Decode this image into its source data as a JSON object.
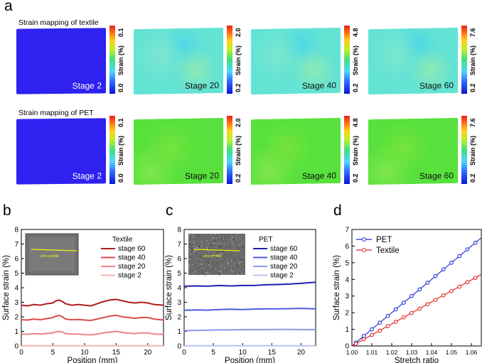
{
  "panel_a": {
    "letter": "a",
    "rows": [
      {
        "title": "Strain mapping of textile",
        "tiles": [
          {
            "stage": "Stage 2",
            "cbar_min": "0.0",
            "cbar_max": "0.1"
          },
          {
            "stage": "Stage 20",
            "cbar_min": "0.2",
            "cbar_max": "2.0"
          },
          {
            "stage": "Stage 40",
            "cbar_min": "0.2",
            "cbar_max": "4.8"
          },
          {
            "stage": "Stage 60",
            "cbar_min": "0.2",
            "cbar_max": "7.6"
          }
        ]
      },
      {
        "title": "Strain mapping of PET",
        "tiles": [
          {
            "stage": "Stage 2",
            "cbar_min": "0.0",
            "cbar_max": "0.1"
          },
          {
            "stage": "Stage 20",
            "cbar_min": "0.2",
            "cbar_max": "2.0"
          },
          {
            "stage": "Stage 40",
            "cbar_min": "0.2",
            "cbar_max": "4.8"
          },
          {
            "stage": "Stage 60",
            "cbar_min": "0.2",
            "cbar_max": "7.6"
          }
        ]
      }
    ],
    "colorbar_label": "Strain (%)",
    "colors": {
      "stage2": "#2f21f0",
      "textile": "#63e3d4",
      "pet": "#58e13c"
    }
  },
  "chart_data": [
    {
      "type": "line",
      "letter": "b",
      "xlabel": "Position (mm)",
      "ylabel": "Surface strain (%)",
      "xlim": [
        0,
        22.5
      ],
      "ylim": [
        0,
        8
      ],
      "xticks": [
        0,
        5,
        10,
        15,
        20
      ],
      "yticks": [
        0,
        1,
        2,
        3,
        4,
        5,
        6,
        7,
        8
      ],
      "legend_title": "Textile",
      "inset_label": "Line profile",
      "series": [
        {
          "name": "stage 60",
          "color": "#b31c1c",
          "x": [
            0,
            1,
            2,
            3,
            4,
            5,
            5.5,
            6,
            6.5,
            7,
            8,
            9,
            10,
            11,
            12,
            13,
            14,
            15,
            16,
            17,
            18,
            19,
            20,
            21,
            22.5
          ],
          "y": [
            2.8,
            2.75,
            2.85,
            2.8,
            2.9,
            2.95,
            3.1,
            3.15,
            3.05,
            2.9,
            2.8,
            2.85,
            2.8,
            2.75,
            2.9,
            3.05,
            3.15,
            3.2,
            3.1,
            3.0,
            2.95,
            3.0,
            2.95,
            2.85,
            2.8
          ]
        },
        {
          "name": "stage 40",
          "color": "#dd4a4a",
          "x": [
            0,
            1,
            2,
            3,
            4,
            5,
            5.5,
            6,
            6.5,
            7,
            8,
            9,
            10,
            11,
            12,
            13,
            14,
            15,
            16,
            17,
            18,
            19,
            20,
            21,
            22.5
          ],
          "y": [
            1.8,
            1.78,
            1.85,
            1.8,
            1.88,
            1.95,
            2.05,
            2.1,
            2.0,
            1.85,
            1.8,
            1.82,
            1.78,
            1.75,
            1.85,
            1.95,
            2.05,
            2.1,
            2.0,
            1.95,
            1.9,
            1.95,
            1.95,
            1.85,
            1.78
          ]
        },
        {
          "name": "stage 20",
          "color": "#ee8585",
          "x": [
            0,
            1,
            2,
            3,
            4,
            5,
            5.5,
            6,
            6.5,
            7,
            8,
            9,
            10,
            11,
            12,
            13,
            14,
            15,
            16,
            17,
            18,
            19,
            20,
            21,
            22.5
          ],
          "y": [
            0.82,
            0.8,
            0.85,
            0.82,
            0.86,
            0.9,
            0.98,
            1.0,
            0.95,
            0.85,
            0.82,
            0.82,
            0.78,
            0.76,
            0.82,
            0.9,
            0.95,
            1.0,
            0.92,
            0.88,
            0.85,
            0.9,
            0.9,
            0.82,
            0.8
          ]
        },
        {
          "name": "stage 2",
          "color": "#f5b3b3",
          "x": [
            0,
            5,
            10,
            15,
            22.5
          ],
          "y": [
            0.01,
            0.01,
            0.01,
            0.01,
            0.01
          ]
        }
      ]
    },
    {
      "type": "line",
      "letter": "c",
      "xlabel": "Position (mm)",
      "ylabel": "Surface strain (%)",
      "xlim": [
        0,
        22.5
      ],
      "ylim": [
        0,
        8
      ],
      "xticks": [
        0,
        5,
        10,
        15,
        20
      ],
      "yticks": [
        0,
        1,
        2,
        3,
        4,
        5,
        6,
        7,
        8
      ],
      "legend_title": "PET",
      "inset_label": "Line profile",
      "series": [
        {
          "name": "stage 60",
          "color": "#1f1fb4",
          "x": [
            0,
            2,
            4,
            6,
            8,
            10,
            12,
            14,
            16,
            18,
            20,
            22.5
          ],
          "y": [
            4.1,
            4.12,
            4.1,
            4.15,
            4.12,
            4.15,
            4.15,
            4.2,
            4.22,
            4.25,
            4.3,
            4.38
          ]
        },
        {
          "name": "stage 40",
          "color": "#4a5ae0",
          "x": [
            0,
            2,
            4,
            6,
            8,
            10,
            12,
            14,
            16,
            18,
            20,
            22.5
          ],
          "y": [
            2.45,
            2.48,
            2.46,
            2.5,
            2.52,
            2.5,
            2.53,
            2.55,
            2.55,
            2.56,
            2.58,
            2.55
          ]
        },
        {
          "name": "stage 20",
          "color": "#8a98ec",
          "x": [
            0,
            2,
            4,
            6,
            8,
            10,
            12,
            14,
            16,
            18,
            20,
            22.5
          ],
          "y": [
            1.05,
            1.07,
            1.08,
            1.1,
            1.1,
            1.12,
            1.12,
            1.12,
            1.13,
            1.13,
            1.12,
            1.12
          ]
        },
        {
          "name": "stage 2",
          "color": "#b8c2f5",
          "x": [
            0,
            5,
            10,
            15,
            22.5
          ],
          "y": [
            0.01,
            0.01,
            0.01,
            0.01,
            0.01
          ]
        }
      ]
    },
    {
      "type": "line",
      "letter": "d",
      "xlabel": "Stretch ratio",
      "ylabel": "Surface strain (%)",
      "xlim": [
        1.0,
        1.065
      ],
      "ylim": [
        0,
        7
      ],
      "xticks": [
        1.0,
        1.01,
        1.02,
        1.03,
        1.04,
        1.05,
        1.06
      ],
      "xtick_labels": [
        "1.00",
        "1.01",
        "1.02",
        "1.03",
        "1.04",
        "1.05",
        "1.06"
      ],
      "yticks": [
        0,
        1,
        2,
        3,
        4,
        5,
        6,
        7
      ],
      "series": [
        {
          "name": "PET",
          "color": "#1f2fd8",
          "x": [
            1.0,
            1.065
          ],
          "y": [
            0,
            6.5
          ],
          "markers_x": [
            1.002,
            1.006,
            1.01,
            1.014,
            1.018,
            1.022,
            1.026,
            1.03,
            1.034,
            1.038,
            1.042,
            1.046,
            1.05,
            1.054,
            1.058,
            1.062
          ],
          "markers_y": [
            0.2,
            0.6,
            1.0,
            1.4,
            1.8,
            2.2,
            2.6,
            3.0,
            3.4,
            3.8,
            4.2,
            4.6,
            5.0,
            5.4,
            5.8,
            6.2
          ]
        },
        {
          "name": "Textile",
          "color": "#e02828",
          "x": [
            1.0,
            1.065
          ],
          "y": [
            0,
            4.3
          ],
          "markers_x": [
            1.002,
            1.006,
            1.01,
            1.014,
            1.018,
            1.022,
            1.026,
            1.03,
            1.034,
            1.038,
            1.042,
            1.046,
            1.05,
            1.054,
            1.058,
            1.062
          ],
          "markers_y": [
            0.13,
            0.4,
            0.66,
            0.92,
            1.19,
            1.45,
            1.72,
            1.98,
            2.24,
            2.51,
            2.77,
            3.04,
            3.3,
            3.56,
            3.83,
            4.09
          ]
        }
      ]
    }
  ]
}
